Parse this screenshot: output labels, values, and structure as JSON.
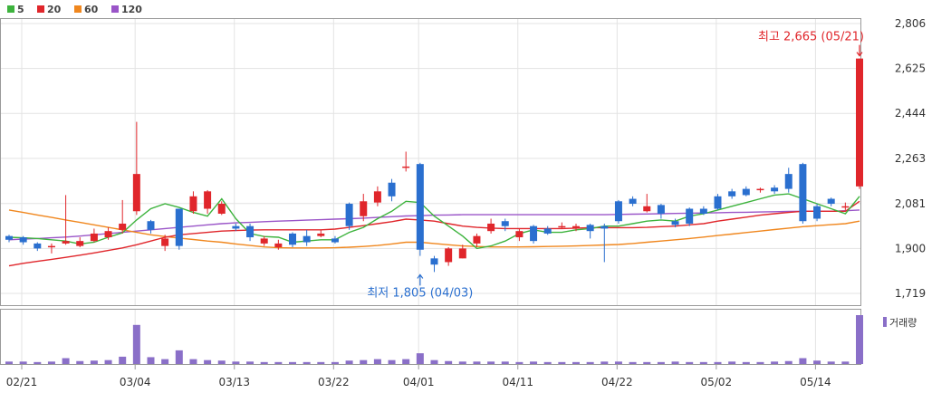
{
  "legend": [
    {
      "label": "5",
      "color": "#3db33d"
    },
    {
      "label": "20",
      "color": "#e0262b"
    },
    {
      "label": "60",
      "color": "#f0871e"
    },
    {
      "label": "120",
      "color": "#9a55c8"
    }
  ],
  "volume_label": "거래량",
  "chart_data": {
    "type": "candlestick",
    "x_labels": [
      {
        "index": 0,
        "label": "02/21"
      },
      {
        "index": 8,
        "label": "03/04"
      },
      {
        "index": 15,
        "label": "03/13"
      },
      {
        "index": 22,
        "label": "03/22"
      },
      {
        "index": 28,
        "label": "04/01"
      },
      {
        "index": 35,
        "label": "04/11"
      },
      {
        "index": 42,
        "label": "04/22"
      },
      {
        "index": 49,
        "label": "05/02"
      },
      {
        "index": 56,
        "label": "05/14"
      }
    ],
    "ylim": [
      1719,
      2806
    ],
    "y_ticks": [
      "2,806",
      "2,625",
      "2,444",
      "2,263",
      "2,081",
      "1,900",
      "1,719"
    ],
    "y_tick_values": [
      2806,
      2625,
      2444,
      2263,
      2081,
      1900,
      1719
    ],
    "annotations": {
      "high": {
        "text": "최고 2,665 (05/21)",
        "index": 60,
        "value": 2665
      },
      "low": {
        "text": "최저 1,805 (04/03)",
        "index": 29,
        "value": 1805
      }
    },
    "candles": [
      [
        1950,
        1935,
        1955,
        1925
      ],
      [
        1945,
        1925,
        1950,
        1915
      ],
      [
        1920,
        1900,
        1925,
        1890
      ],
      [
        1905,
        1910,
        1920,
        1880
      ],
      [
        1920,
        1930,
        2115,
        1915
      ],
      [
        1910,
        1930,
        1945,
        1905
      ],
      [
        1930,
        1960,
        1980,
        1925
      ],
      [
        1945,
        1970,
        1985,
        1935
      ],
      [
        1975,
        2000,
        2095,
        1960
      ],
      [
        2050,
        2200,
        2410,
        2035
      ],
      [
        2010,
        1975,
        2015,
        1960
      ],
      [
        1910,
        1940,
        1955,
        1890
      ],
      [
        2060,
        1910,
        2060,
        1895
      ],
      [
        2050,
        2110,
        2130,
        2040
      ],
      [
        2060,
        2130,
        2135,
        2040
      ],
      [
        2040,
        2080,
        2090,
        2035
      ],
      [
        1990,
        1980,
        2000,
        1970
      ],
      [
        1990,
        1945,
        2000,
        1930
      ],
      [
        1920,
        1940,
        1950,
        1910
      ],
      [
        1905,
        1920,
        1935,
        1895
      ],
      [
        1960,
        1915,
        1965,
        1905
      ],
      [
        1950,
        1925,
        1975,
        1910
      ],
      [
        1950,
        1960,
        1975,
        1945
      ],
      [
        1940,
        1925,
        1950,
        1920
      ],
      [
        2080,
        1990,
        2085,
        1975
      ],
      [
        2030,
        2090,
        2120,
        2010
      ],
      [
        2085,
        2130,
        2150,
        2070
      ],
      [
        2165,
        2110,
        2180,
        2090
      ],
      [
        2225,
        2230,
        2290,
        2210
      ],
      [
        2240,
        1895,
        2245,
        1870
      ],
      [
        1860,
        1835,
        1870,
        1805
      ],
      [
        1845,
        1900,
        1905,
        1830
      ],
      [
        1860,
        1900,
        1915,
        1860
      ],
      [
        1920,
        1950,
        1960,
        1905
      ],
      [
        1970,
        2000,
        2020,
        1960
      ],
      [
        2010,
        1990,
        2020,
        1970
      ],
      [
        1945,
        1970,
        1980,
        1930
      ],
      [
        1990,
        1930,
        1995,
        1920
      ],
      [
        1980,
        1960,
        1990,
        1955
      ],
      [
        1990,
        1990,
        2005,
        1980
      ],
      [
        1980,
        1990,
        2000,
        1970
      ],
      [
        1995,
        1970,
        2000,
        1940
      ],
      [
        1990,
        1980,
        2000,
        1845
      ],
      [
        2090,
        2010,
        2095,
        2000
      ],
      [
        2100,
        2080,
        2110,
        2070
      ],
      [
        2050,
        2070,
        2120,
        2045
      ],
      [
        2075,
        2040,
        2080,
        2020
      ],
      [
        2010,
        1995,
        2020,
        1985
      ],
      [
        2060,
        2000,
        2065,
        1990
      ],
      [
        2060,
        2040,
        2070,
        2035
      ],
      [
        2110,
        2060,
        2120,
        2055
      ],
      [
        2130,
        2110,
        2140,
        2100
      ],
      [
        2140,
        2115,
        2150,
        2110
      ],
      [
        2135,
        2140,
        2145,
        2125
      ],
      [
        2145,
        2130,
        2155,
        2120
      ],
      [
        2200,
        2140,
        2225,
        2125
      ],
      [
        2240,
        2010,
        2245,
        2000
      ],
      [
        2070,
        2020,
        2080,
        2010
      ],
      [
        2100,
        2080,
        2105,
        2070
      ],
      [
        2070,
        2070,
        2085,
        2055
      ],
      [
        2150,
        2665,
        2665,
        2140
      ]
    ],
    "volume": [
      0.05,
      0.05,
      0.04,
      0.05,
      0.12,
      0.06,
      0.07,
      0.08,
      0.15,
      0.8,
      0.14,
      0.1,
      0.28,
      0.1,
      0.08,
      0.07,
      0.05,
      0.05,
      0.04,
      0.04,
      0.04,
      0.04,
      0.04,
      0.04,
      0.07,
      0.08,
      0.1,
      0.08,
      0.1,
      0.22,
      0.08,
      0.06,
      0.05,
      0.05,
      0.05,
      0.05,
      0.04,
      0.05,
      0.04,
      0.04,
      0.04,
      0.04,
      0.05,
      0.05,
      0.04,
      0.04,
      0.04,
      0.05,
      0.04,
      0.04,
      0.04,
      0.05,
      0.04,
      0.04,
      0.05,
      0.06,
      0.12,
      0.07,
      0.05,
      0.05,
      1.0
    ],
    "ma5": [
      1945,
      1943,
      1940,
      1935,
      1930,
      1918,
      1925,
      1945,
      1963,
      2015,
      2060,
      2080,
      2065,
      2045,
      2030,
      2100,
      2020,
      1960,
      1948,
      1945,
      1925,
      1930,
      1935,
      1935,
      1965,
      1985,
      2020,
      2050,
      2090,
      2085,
      2030,
      1990,
      1950,
      1900,
      1910,
      1930,
      1960,
      1975,
      1965,
      1965,
      1975,
      1980,
      1990,
      1990,
      2000,
      2010,
      2015,
      2010,
      2030,
      2040,
      2055,
      2070,
      2085,
      2100,
      2115,
      2120,
      2100,
      2080,
      2060,
      2040,
      2110
    ],
    "ma20": [
      1830,
      1840,
      1848,
      1856,
      1864,
      1873,
      1882,
      1892,
      1902,
      1915,
      1930,
      1945,
      1955,
      1960,
      1965,
      1970,
      1972,
      1974,
      1975,
      1975,
      1975,
      1975,
      1975,
      1978,
      1985,
      1992,
      2000,
      2008,
      2018,
      2015,
      2010,
      2000,
      1990,
      1985,
      1982,
      1980,
      1980,
      1980,
      1980,
      1980,
      1982,
      1984,
      1984,
      1984,
      1984,
      1985,
      1988,
      1990,
      1995,
      2000,
      2010,
      2018,
      2026,
      2034,
      2040,
      2045,
      2050,
      2050,
      2050,
      2050,
      2090
    ],
    "ma60": [
      2055,
      2045,
      2035,
      2025,
      2015,
      2005,
      1995,
      1985,
      1975,
      1965,
      1955,
      1948,
      1942,
      1936,
      1930,
      1925,
      1918,
      1912,
      1906,
      1903,
      1902,
      1902,
      1902,
      1903,
      1905,
      1908,
      1912,
      1918,
      1925,
      1925,
      1920,
      1915,
      1910,
      1908,
      1906,
      1906,
      1906,
      1907,
      1908,
      1909,
      1910,
      1912,
      1914,
      1916,
      1920,
      1925,
      1930,
      1935,
      1940,
      1946,
      1952,
      1958,
      1964,
      1970,
      1976,
      1982,
      1988,
      1992,
      1996,
      2000,
      2010
    ],
    "ma120": [
      1935,
      1938,
      1940,
      1943,
      1946,
      1950,
      1955,
      1960,
      1965,
      1970,
      1975,
      1980,
      1985,
      1990,
      1995,
      2000,
      2003,
      2005,
      2008,
      2010,
      2012,
      2014,
      2016,
      2018,
      2020,
      2022,
      2025,
      2028,
      2031,
      2032,
      2034,
      2035,
      2036,
      2036,
      2036,
      2036,
      2036,
      2036,
      2036,
      2036,
      2036,
      2036,
      2036,
      2037,
      2038,
      2039,
      2040,
      2041,
      2042,
      2043,
      2044,
      2045,
      2046,
      2047,
      2048,
      2049,
      2050,
      2050,
      2050,
      2052,
      2055
    ]
  }
}
